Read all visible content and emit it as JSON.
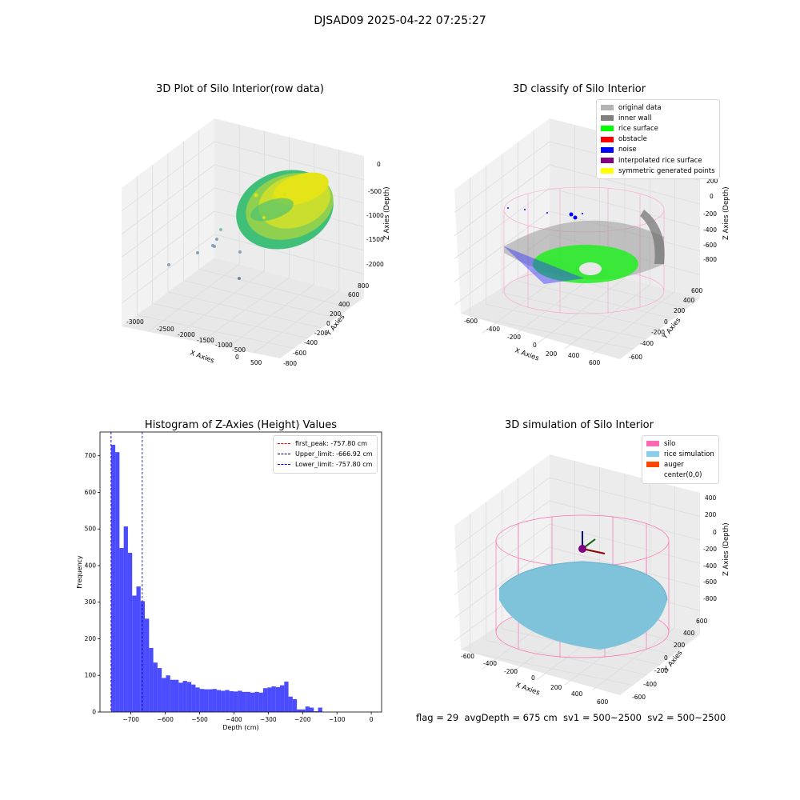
{
  "suptitle": "DJSAD09 2025-04-22 07:25:27",
  "panel1": {
    "title": "3D Plot of Silo Interior(row data)",
    "xlabel": "X Axies",
    "ylabel": "Y Axies",
    "zlabel": "Z Axies (Depth)",
    "xticks": [
      "-3000",
      "-2500",
      "-2000",
      "-1500",
      "-1000",
      "-500",
      "0",
      "500"
    ],
    "yticks": [
      "-800",
      "-600",
      "-400",
      "-200",
      "0",
      "200",
      "400",
      "600",
      "800"
    ],
    "zticks": [
      "0",
      "-500",
      "-1000",
      "-1500",
      "-2000"
    ]
  },
  "panel2": {
    "title": "3D classify of Silo Interior",
    "xlabel": "X Axies",
    "ylabel": "Y Axies",
    "zlabel": "Z Axies (Depth)",
    "xticks": [
      "-600",
      "-400",
      "-200",
      "0",
      "200",
      "400",
      "600"
    ],
    "yticks": [
      "-600",
      "-400",
      "-200",
      "0",
      "200",
      "400",
      "600"
    ],
    "zticks": [
      "200",
      "0",
      "-200",
      "-400",
      "-600",
      "-800"
    ],
    "legend": [
      {
        "label": "original data",
        "color": "#b3b3b3"
      },
      {
        "label": "inner wall",
        "color": "#808080"
      },
      {
        "label": "rice surface",
        "color": "#00ff00"
      },
      {
        "label": "obstacle",
        "color": "#ff0000"
      },
      {
        "label": "noise",
        "color": "#0000ff"
      },
      {
        "label": "interpolated rice surface",
        "color": "#800080"
      },
      {
        "label": "symmetric generated points",
        "color": "#ffff00"
      }
    ]
  },
  "panel3": {
    "title": "Histogram of Z-Axies (Height) Values",
    "legend": [
      {
        "label": "first_peak: -757.80 cm",
        "color": "#ff0000"
      },
      {
        "label": "Upper_limit: -666.92 cm",
        "color": "#00008b"
      },
      {
        "label": "Lower_limit: -757.80 cm",
        "color": "#0000ff"
      }
    ]
  },
  "panel4": {
    "title": "3D simulation of Silo Interior",
    "xlabel": "X Axies",
    "ylabel": "Y Axies",
    "zlabel": "Z Axies (Depth)",
    "xticks": [
      "-600",
      "-400",
      "-200",
      "0",
      "200",
      "400",
      "600"
    ],
    "yticks": [
      "-600",
      "-400",
      "-200",
      "0",
      "200",
      "400",
      "600"
    ],
    "zticks": [
      "400",
      "200",
      "0",
      "-200",
      "-400",
      "-600",
      "-800"
    ],
    "legend": [
      {
        "label": "silo",
        "color": "#ff69b4"
      },
      {
        "label": "rice simulation",
        "color": "#87ceeb"
      },
      {
        "label": "auger",
        "color": "#ff4500"
      },
      {
        "label": "center(0,0)",
        "color": ""
      }
    ]
  },
  "bottom_text": "flag = 29  avgDepth = 675 cm  sv1 = 500~2500  sv2 = 500~2500",
  "chart_data": {
    "type": "bar",
    "title": "Histogram of Z-Axies (Height) Values",
    "xlabel": "Depth (cm)",
    "ylabel": "Frequency",
    "xlim": [
      -790,
      30
    ],
    "ylim": [
      0,
      765
    ],
    "xticks": [
      -700,
      -600,
      -500,
      -400,
      -300,
      -200,
      -100,
      0
    ],
    "yticks": [
      0,
      100,
      200,
      300,
      400,
      500,
      600,
      700
    ],
    "bar_color": "#0000ff",
    "bin_start": -757.8,
    "bin_width": 12.3,
    "values": [
      730,
      710,
      448,
      507,
      435,
      318,
      343,
      303,
      255,
      175,
      135,
      120,
      93,
      100,
      88,
      88,
      80,
      85,
      82,
      75,
      67,
      63,
      62,
      62,
      63,
      60,
      58,
      60,
      57,
      56,
      58,
      55,
      55,
      53,
      55,
      53,
      65,
      67,
      70,
      68,
      73,
      83,
      42,
      35,
      7,
      7,
      15,
      12,
      2,
      12
    ],
    "vlines": [
      {
        "name": "first_peak",
        "x": -757.8,
        "color": "#ff0000"
      },
      {
        "name": "Upper_limit",
        "x": -666.92,
        "color": "#00008b"
      },
      {
        "name": "Lower_limit",
        "x": -757.8,
        "color": "#0000ff"
      }
    ]
  }
}
